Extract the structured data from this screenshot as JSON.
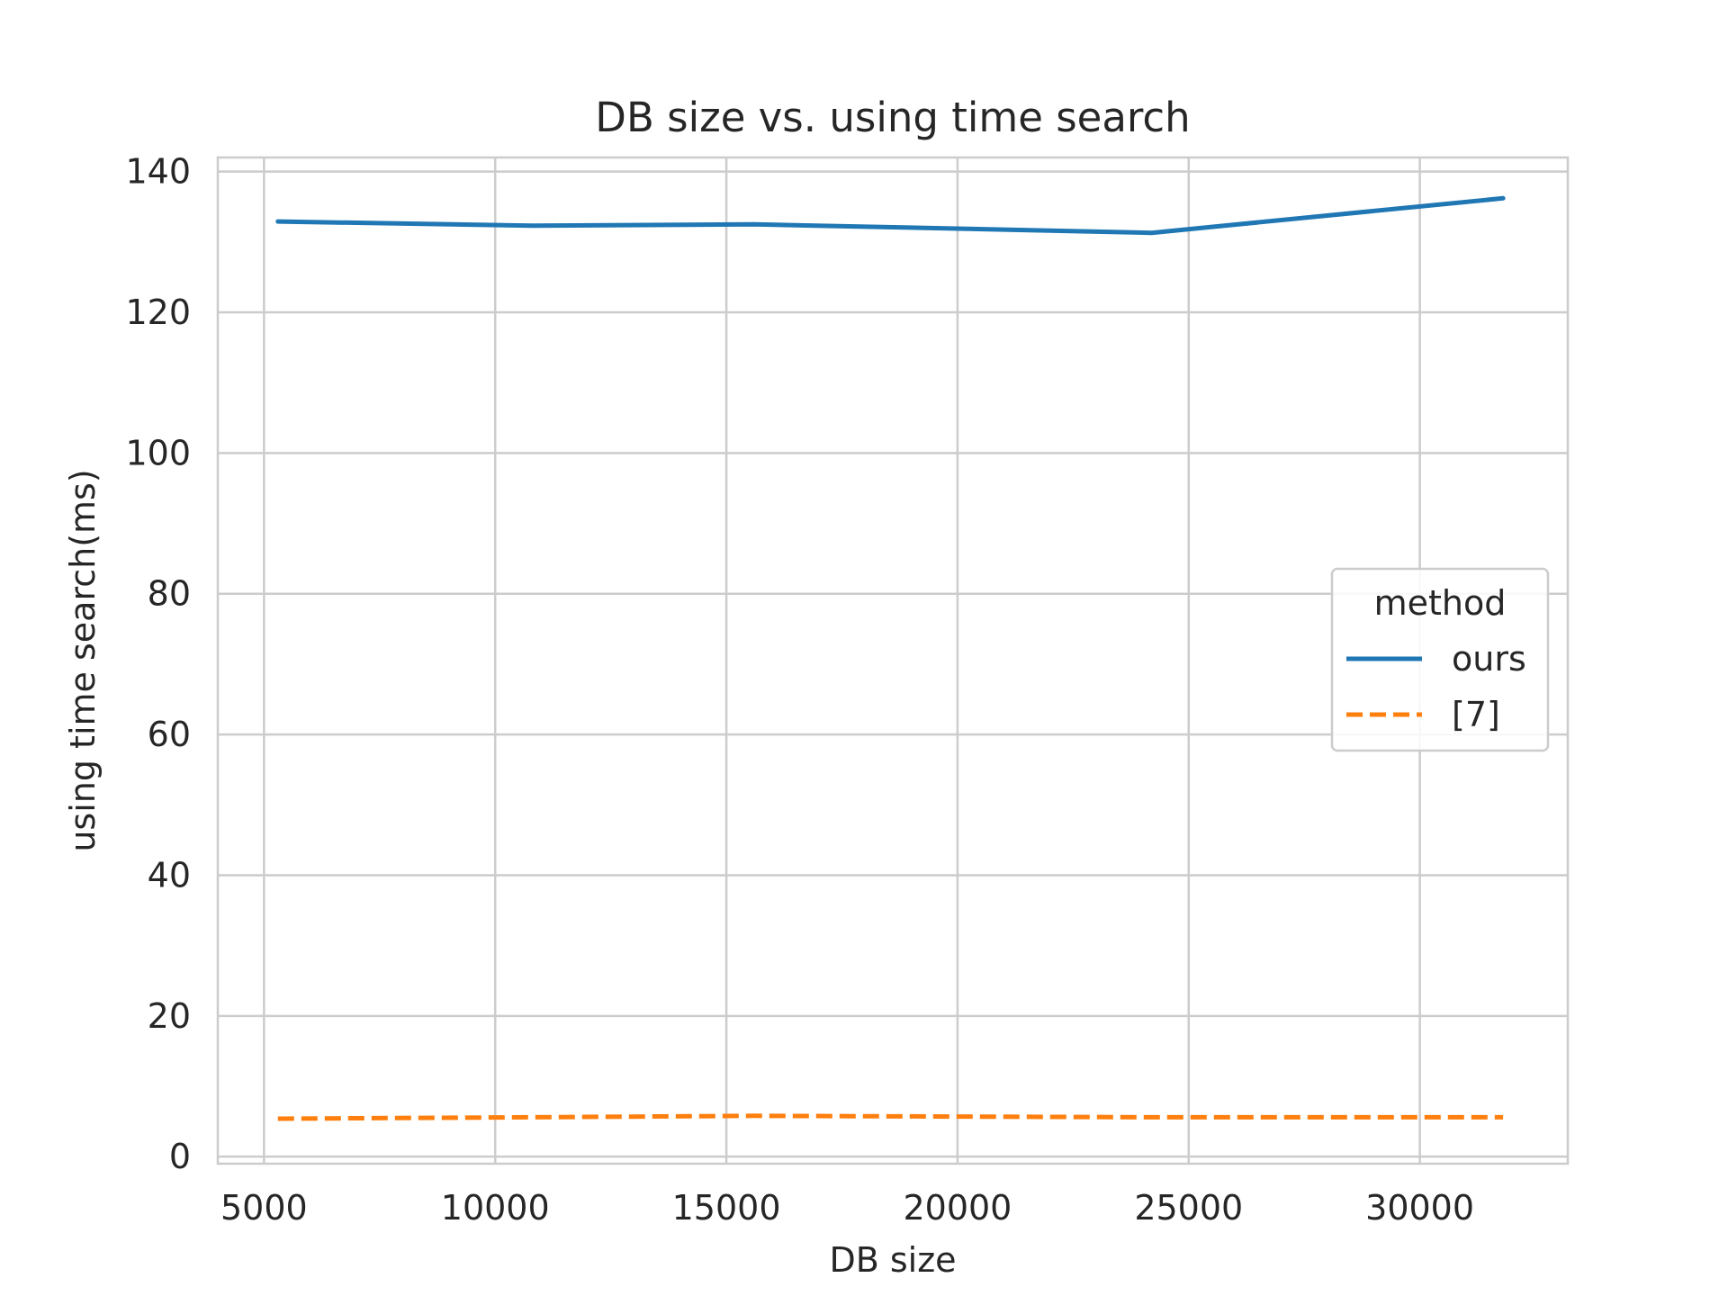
{
  "chart_data": {
    "type": "line",
    "title": "DB size vs. using time search",
    "xlabel": "DB size",
    "ylabel": "using time search(ms)",
    "xlim": [
      4000,
      33200
    ],
    "ylim": [
      -1,
      142
    ],
    "xticks": [
      5000,
      10000,
      15000,
      20000,
      25000,
      30000
    ],
    "yticks": [
      0,
      20,
      40,
      60,
      80,
      100,
      120,
      140
    ],
    "grid": true,
    "legend": {
      "title": "method",
      "position": "center-right"
    },
    "series": [
      {
        "name": "ours",
        "color": "#1f77b4",
        "dash": "solid",
        "x": [
          5300,
          10800,
          15600,
          20000,
          24200,
          31800
        ],
        "y": [
          132.9,
          132.3,
          132.5,
          131.9,
          131.3,
          136.2
        ]
      },
      {
        "name": "[7]",
        "color": "#ff7f0e",
        "dash": "dashed",
        "x": [
          5300,
          10800,
          15600,
          20000,
          24200,
          31800
        ],
        "y": [
          5.4,
          5.6,
          5.8,
          5.7,
          5.6,
          5.6
        ]
      }
    ]
  }
}
